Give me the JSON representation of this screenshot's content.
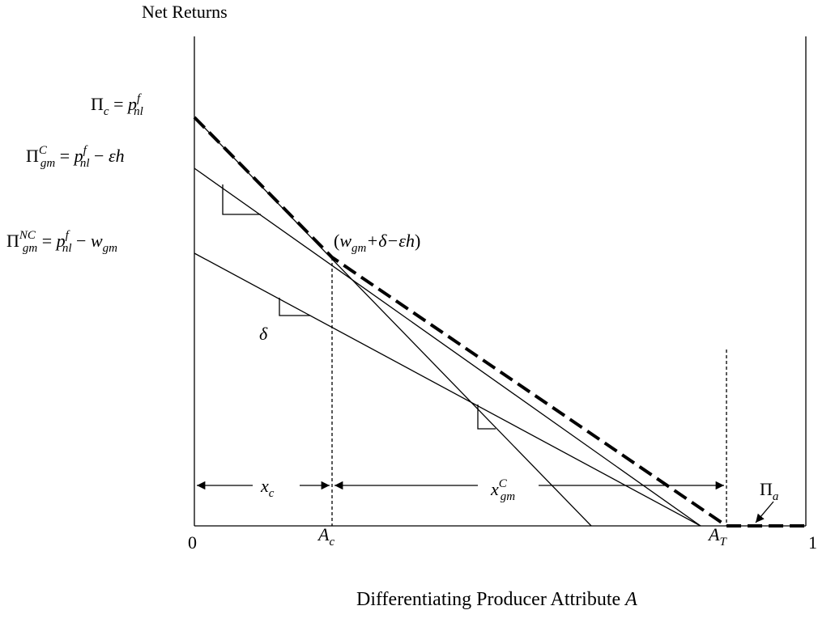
{
  "header": {
    "y_axis_label": "Net Returns"
  },
  "axis": {
    "origin": "0",
    "end": "1"
  },
  "x_axis_label": [
    {
      "text": "Differentiating Producer Attribute "
    },
    {
      "it": "A"
    }
  ],
  "labels": [
    [
      {
        "text": "Π"
      },
      {
        "sub": "c"
      },
      {
        "text": " = "
      },
      {
        "it": "p"
      },
      {
        "supsub": {
          "sup": "f",
          "sub": "nl"
        }
      }
    ],
    [
      {
        "text": "Π"
      },
      {
        "supsub": {
          "sup": "C",
          "sub": "gm"
        }
      },
      {
        "text": " = "
      },
      {
        "it": "p"
      },
      {
        "supsub": {
          "sup": "f",
          "sub": "nl"
        }
      },
      {
        "text": " − "
      },
      {
        "it": "εh"
      }
    ],
    [
      {
        "text": "Π"
      },
      {
        "supsub": {
          "sup": "NC",
          "sub": "gm"
        }
      },
      {
        "text": " = "
      },
      {
        "it": "p"
      },
      {
        "supsub": {
          "sup": "f",
          "sub": "nl"
        }
      },
      {
        "text": " − "
      },
      {
        "it": "w"
      },
      {
        "sub": "gm"
      }
    ],
    [
      {
        "text": "("
      },
      {
        "it": "w"
      },
      {
        "sub": "gm"
      },
      {
        "it": "+δ−εh"
      },
      {
        "text": ")"
      }
    ],
    [
      {
        "it": "δ"
      }
    ],
    [
      {
        "it": "x"
      },
      {
        "sub": "c"
      }
    ],
    [
      {
        "it": "x"
      },
      {
        "supsub": {
          "sup": "C",
          "sub": "gm"
        }
      }
    ],
    [
      {
        "text": "Π"
      },
      {
        "sub": "a"
      }
    ],
    [
      {
        "it": "A"
      },
      {
        "sub": "c"
      }
    ],
    [
      {
        "it": "A"
      },
      {
        "sub": "T"
      }
    ]
  ]
}
